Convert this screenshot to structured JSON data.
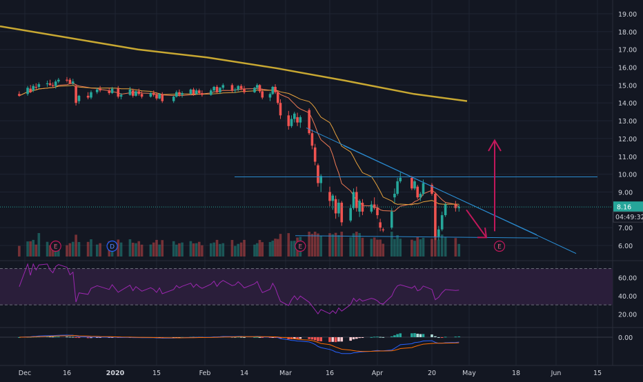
{
  "colors": {
    "background": "#131722",
    "grid": "#1f2433",
    "text": "#d1d4dc",
    "up": "#26a69a",
    "down": "#ef5350",
    "ma200": "#c8a832",
    "ma_fast": "#ef7a55",
    "ma_slow": "#e8a33d",
    "trend": "#2a8bd0",
    "arrow": "#c2185b",
    "rsi_line": "#9c27b0",
    "rsi_band": "#2a1e3a",
    "macd_line": "#2962ff",
    "signal_line": "#ff6d00",
    "price_badge": "#5d606b",
    "timer_badge": "#131722"
  },
  "chart_data": {
    "type": "candlestick",
    "xlabels": [
      "Dec",
      "16",
      "2020",
      "15",
      "Feb",
      "14",
      "Mar",
      "16",
      "Apr",
      "20",
      "May",
      "18",
      "Jun",
      "15"
    ],
    "price_axis": {
      "ticks": [
        "19.00",
        "18.00",
        "17.00",
        "16.00",
        "15.00",
        "14.00",
        "13.00",
        "12.00",
        "11.00",
        "10.00",
        "9.00",
        "7.00",
        "6.00"
      ],
      "range": [
        5.4,
        19.6
      ]
    },
    "last_price": {
      "label": "8.16",
      "value": 8.16
    },
    "countdown": "04:49:32",
    "rsi_axis": {
      "ticks": [
        "60.00",
        "40.00",
        "20.00"
      ],
      "range": [
        5,
        78
      ],
      "upper": 70,
      "lower": 30
    },
    "macd_axis": {
      "ticks": [
        "0.00"
      ]
    },
    "event_markers": [
      {
        "label": "E",
        "date": "Dec 12"
      },
      {
        "label": "D",
        "date": "Dec 31"
      },
      {
        "label": "E",
        "date": "Mar 6"
      },
      {
        "label": "E",
        "date": "May 12"
      }
    ],
    "candles": [
      {
        "d": "Nov 29",
        "o": 14.5,
        "h": 14.65,
        "l": 14.35,
        "c": 14.4
      },
      {
        "d": "Dec 2",
        "o": 14.5,
        "h": 14.95,
        "l": 14.4,
        "c": 14.85
      },
      {
        "d": "Dec 3",
        "o": 14.8,
        "h": 15.0,
        "l": 14.55,
        "c": 14.6
      },
      {
        "d": "Dec 4",
        "o": 14.7,
        "h": 15.05,
        "l": 14.6,
        "c": 14.95
      },
      {
        "d": "Dec 5",
        "o": 14.9,
        "h": 15.1,
        "l": 14.75,
        "c": 14.85
      },
      {
        "d": "Dec 6",
        "o": 14.9,
        "h": 15.15,
        "l": 14.8,
        "c": 15.05
      },
      {
        "d": "Dec 9",
        "o": 15.05,
        "h": 15.25,
        "l": 14.9,
        "c": 15.1
      },
      {
        "d": "Dec 10",
        "o": 15.1,
        "h": 15.3,
        "l": 14.95,
        "c": 15.0
      },
      {
        "d": "Dec 11",
        "o": 15.0,
        "h": 15.15,
        "l": 14.85,
        "c": 14.95
      },
      {
        "d": "Dec 12",
        "o": 14.95,
        "h": 15.3,
        "l": 14.8,
        "c": 15.2
      },
      {
        "d": "Dec 13",
        "o": 15.2,
        "h": 15.4,
        "l": 15.1,
        "c": 15.3
      },
      {
        "d": "Dec 16",
        "o": 15.3,
        "h": 15.45,
        "l": 15.15,
        "c": 15.25
      },
      {
        "d": "Dec 17",
        "o": 15.3,
        "h": 15.4,
        "l": 15.05,
        "c": 15.1
      },
      {
        "d": "Dec 18",
        "o": 15.1,
        "h": 15.35,
        "l": 15.0,
        "c": 15.2
      },
      {
        "d": "Dec 19",
        "o": 14.95,
        "h": 15.05,
        "l": 13.85,
        "c": 14.0
      },
      {
        "d": "Dec 20",
        "o": 14.1,
        "h": 14.45,
        "l": 13.95,
        "c": 14.4
      },
      {
        "d": "Dec 23",
        "o": 14.4,
        "h": 14.6,
        "l": 14.2,
        "c": 14.3
      },
      {
        "d": "Dec 24",
        "o": 14.3,
        "h": 14.7,
        "l": 14.2,
        "c": 14.6
      },
      {
        "d": "Dec 26",
        "o": 14.6,
        "h": 14.85,
        "l": 14.5,
        "c": 14.75
      },
      {
        "d": "Dec 27",
        "o": 14.8,
        "h": 14.95,
        "l": 14.6,
        "c": 14.7
      },
      {
        "d": "Dec 30",
        "o": 14.7,
        "h": 14.85,
        "l": 14.45,
        "c": 14.55
      },
      {
        "d": "Dec 31",
        "o": 14.55,
        "h": 14.9,
        "l": 14.5,
        "c": 14.8
      },
      {
        "d": "Jan 2",
        "o": 14.8,
        "h": 14.95,
        "l": 14.25,
        "c": 14.35
      },
      {
        "d": "Jan 3",
        "o": 14.35,
        "h": 14.55,
        "l": 14.2,
        "c": 14.45
      },
      {
        "d": "Jan 6",
        "o": 14.45,
        "h": 14.9,
        "l": 14.4,
        "c": 14.75
      },
      {
        "d": "Jan 7",
        "o": 14.7,
        "h": 14.8,
        "l": 14.3,
        "c": 14.4
      },
      {
        "d": "Jan 8",
        "o": 14.4,
        "h": 14.7,
        "l": 14.35,
        "c": 14.65
      },
      {
        "d": "Jan 9",
        "o": 14.65,
        "h": 14.8,
        "l": 14.4,
        "c": 14.5
      },
      {
        "d": "Jan 10",
        "o": 14.5,
        "h": 14.65,
        "l": 14.25,
        "c": 14.35
      },
      {
        "d": "Jan 13",
        "o": 14.35,
        "h": 14.6,
        "l": 14.3,
        "c": 14.55
      },
      {
        "d": "Jan 14",
        "o": 14.55,
        "h": 14.7,
        "l": 14.35,
        "c": 14.45
      },
      {
        "d": "Jan 15",
        "o": 14.45,
        "h": 14.6,
        "l": 14.15,
        "c": 14.25
      },
      {
        "d": "Jan 16",
        "o": 14.25,
        "h": 14.55,
        "l": 14.2,
        "c": 14.5
      },
      {
        "d": "Jan 17",
        "o": 14.5,
        "h": 14.6,
        "l": 14.0,
        "c": 14.1
      },
      {
        "d": "Jan 21",
        "o": 14.1,
        "h": 14.4,
        "l": 14.0,
        "c": 14.35
      },
      {
        "d": "Jan 22",
        "o": 14.35,
        "h": 14.7,
        "l": 14.3,
        "c": 14.6
      },
      {
        "d": "Jan 23",
        "o": 14.6,
        "h": 14.75,
        "l": 14.35,
        "c": 14.45
      },
      {
        "d": "Jan 24",
        "o": 14.45,
        "h": 14.65,
        "l": 14.3,
        "c": 14.55
      },
      {
        "d": "Jan 27",
        "o": 14.5,
        "h": 14.8,
        "l": 14.45,
        "c": 14.75
      },
      {
        "d": "Jan 28",
        "o": 14.75,
        "h": 14.85,
        "l": 14.4,
        "c": 14.5
      },
      {
        "d": "Jan 29",
        "o": 14.5,
        "h": 14.8,
        "l": 14.45,
        "c": 14.7
      },
      {
        "d": "Jan 30",
        "o": 14.7,
        "h": 14.8,
        "l": 14.45,
        "c": 14.55
      },
      {
        "d": "Jan 31",
        "o": 14.55,
        "h": 14.7,
        "l": 14.35,
        "c": 14.45
      },
      {
        "d": "Feb 3",
        "o": 14.45,
        "h": 14.8,
        "l": 14.4,
        "c": 14.7
      },
      {
        "d": "Feb 4",
        "o": 14.7,
        "h": 14.95,
        "l": 14.6,
        "c": 14.9
      },
      {
        "d": "Feb 5",
        "o": 14.9,
        "h": 15.0,
        "l": 14.55,
        "c": 14.6
      },
      {
        "d": "Feb 6",
        "o": 14.6,
        "h": 14.9,
        "l": 14.5,
        "c": 14.85
      },
      {
        "d": "Feb 7",
        "o": 14.85,
        "h": 15.1,
        "l": 14.75,
        "c": 15.0
      },
      {
        "d": "Feb 10",
        "o": 15.0,
        "h": 15.1,
        "l": 14.6,
        "c": 14.7
      },
      {
        "d": "Feb 11",
        "o": 14.7,
        "h": 14.85,
        "l": 14.55,
        "c": 14.75
      },
      {
        "d": "Feb 12",
        "o": 14.75,
        "h": 15.0,
        "l": 14.65,
        "c": 14.95
      },
      {
        "d": "Feb 13",
        "o": 14.95,
        "h": 15.05,
        "l": 14.7,
        "c": 14.8
      },
      {
        "d": "Feb 14",
        "o": 14.8,
        "h": 14.95,
        "l": 14.5,
        "c": 14.6
      },
      {
        "d": "Feb 18",
        "o": 14.6,
        "h": 14.9,
        "l": 14.55,
        "c": 14.85
      },
      {
        "d": "Feb 19",
        "o": 14.85,
        "h": 15.1,
        "l": 14.75,
        "c": 15.0
      },
      {
        "d": "Feb 20",
        "o": 15.0,
        "h": 15.05,
        "l": 14.55,
        "c": 14.65
      },
      {
        "d": "Feb 21",
        "o": 14.65,
        "h": 14.8,
        "l": 14.2,
        "c": 14.3
      },
      {
        "d": "Feb 24",
        "o": 14.3,
        "h": 14.6,
        "l": 14.1,
        "c": 14.5
      },
      {
        "d": "Feb 25",
        "o": 14.5,
        "h": 14.95,
        "l": 14.45,
        "c": 14.9
      },
      {
        "d": "Feb 26",
        "o": 14.9,
        "h": 15.05,
        "l": 14.5,
        "c": 14.6
      },
      {
        "d": "Feb 27",
        "o": 14.6,
        "h": 14.7,
        "l": 13.9,
        "c": 14.0
      },
      {
        "d": "Feb 28",
        "o": 14.0,
        "h": 14.2,
        "l": 13.1,
        "c": 13.3
      },
      {
        "d": "Mar 2",
        "o": 13.3,
        "h": 13.55,
        "l": 12.5,
        "c": 12.7
      },
      {
        "d": "Mar 3",
        "o": 12.7,
        "h": 13.3,
        "l": 12.6,
        "c": 13.1
      },
      {
        "d": "Mar 4",
        "o": 13.1,
        "h": 13.5,
        "l": 12.9,
        "c": 13.4
      },
      {
        "d": "Mar 5",
        "o": 13.2,
        "h": 13.45,
        "l": 12.7,
        "c": 12.9
      },
      {
        "d": "Mar 6",
        "o": 12.9,
        "h": 13.3,
        "l": 12.6,
        "c": 13.2
      },
      {
        "d": "Mar 9",
        "o": 13.6,
        "h": 13.7,
        "l": 12.2,
        "c": 12.3
      },
      {
        "d": "Mar 10",
        "o": 12.3,
        "h": 12.5,
        "l": 11.4,
        "c": 11.6
      },
      {
        "d": "Mar 11",
        "o": 11.5,
        "h": 11.7,
        "l": 10.5,
        "c": 10.7
      },
      {
        "d": "Mar 12",
        "o": 10.5,
        "h": 10.6,
        "l": 9.3,
        "c": 9.5
      },
      {
        "d": "Mar 13",
        "o": 9.5,
        "h": 10.0,
        "l": 9.0,
        "c": 9.9
      },
      {
        "d": "Mar 16",
        "o": 9.0,
        "h": 9.3,
        "l": 8.2,
        "c": 8.5
      },
      {
        "d": "Mar 17",
        "o": 8.5,
        "h": 8.9,
        "l": 8.0,
        "c": 8.8
      },
      {
        "d": "Mar 18",
        "o": 8.6,
        "h": 8.8,
        "l": 7.5,
        "c": 7.8
      },
      {
        "d": "Mar 19",
        "o": 7.8,
        "h": 8.6,
        "l": 7.6,
        "c": 8.4
      },
      {
        "d": "Mar 20",
        "o": 8.4,
        "h": 8.5,
        "l": 7.1,
        "c": 7.3
      },
      {
        "d": "Mar 23",
        "o": 7.4,
        "h": 8.3,
        "l": 7.3,
        "c": 8.1
      },
      {
        "d": "Mar 24",
        "o": 8.1,
        "h": 9.2,
        "l": 8.0,
        "c": 9.0
      },
      {
        "d": "Mar 25",
        "o": 9.0,
        "h": 9.3,
        "l": 7.9,
        "c": 8.1
      },
      {
        "d": "Mar 26",
        "o": 7.9,
        "h": 8.6,
        "l": 7.6,
        "c": 8.5
      },
      {
        "d": "Mar 27",
        "o": 8.4,
        "h": 8.6,
        "l": 7.7,
        "c": 7.9
      },
      {
        "d": "Mar 30",
        "o": 7.9,
        "h": 8.5,
        "l": 7.8,
        "c": 8.3
      },
      {
        "d": "Mar 31",
        "o": 8.3,
        "h": 8.7,
        "l": 8.0,
        "c": 8.1
      },
      {
        "d": "Apr 1",
        "o": 8.1,
        "h": 8.3,
        "l": 7.5,
        "c": 7.7
      },
      {
        "d": "Apr 2",
        "o": 7.3,
        "h": 7.5,
        "l": 6.8,
        "c": 7.0
      },
      {
        "d": "Apr 3",
        "o": 6.9,
        "h": 7.0,
        "l": 6.75,
        "c": 6.85
      },
      {
        "d": "Apr 6",
        "o": 7.0,
        "h": 8.1,
        "l": 6.9,
        "c": 7.9
      },
      {
        "d": "Apr 7",
        "o": 8.7,
        "h": 9.2,
        "l": 8.4,
        "c": 8.9
      },
      {
        "d": "Apr 8",
        "o": 8.9,
        "h": 9.8,
        "l": 8.8,
        "c": 9.6
      },
      {
        "d": "Apr 9",
        "o": 9.6,
        "h": 10.1,
        "l": 9.5,
        "c": 9.8
      },
      {
        "d": "Apr 13",
        "o": 9.8,
        "h": 9.9,
        "l": 9.1,
        "c": 9.2
      },
      {
        "d": "Apr 14",
        "o": 9.2,
        "h": 9.7,
        "l": 9.1,
        "c": 9.6
      },
      {
        "d": "Apr 15",
        "o": 9.3,
        "h": 9.4,
        "l": 8.6,
        "c": 8.7
      },
      {
        "d": "Apr 16",
        "o": 8.7,
        "h": 9.0,
        "l": 8.5,
        "c": 8.9
      },
      {
        "d": "Apr 17",
        "o": 8.9,
        "h": 9.7,
        "l": 8.8,
        "c": 9.5
      },
      {
        "d": "Apr 20",
        "o": 9.4,
        "h": 9.5,
        "l": 8.8,
        "c": 8.9
      },
      {
        "d": "Apr 21",
        "o": 8.9,
        "h": 9.0,
        "l": 6.3,
        "c": 6.5
      },
      {
        "d": "Apr 22",
        "o": 6.5,
        "h": 7.1,
        "l": 6.3,
        "c": 6.9
      },
      {
        "d": "Apr 23",
        "o": 6.9,
        "h": 7.9,
        "l": 6.8,
        "c": 7.7
      },
      {
        "d": "Apr 24",
        "o": 7.7,
        "h": 8.4,
        "l": 7.6,
        "c": 8.3
      },
      {
        "d": "Apr 27",
        "o": 8.3,
        "h": 8.5,
        "l": 7.9,
        "c": 8.1
      },
      {
        "d": "Apr 28",
        "o": 8.1,
        "h": 8.3,
        "l": 7.9,
        "c": 8.16
      }
    ]
  }
}
